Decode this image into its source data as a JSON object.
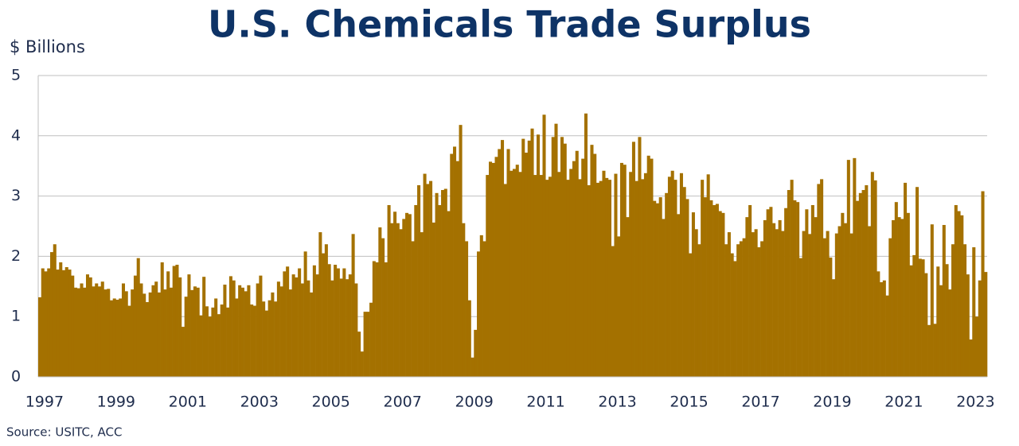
{
  "chart_data": {
    "type": "bar",
    "title": "U.S. Chemicals Trade Surplus",
    "y_label": "$ Billions",
    "source": "Source:  USITC, ACC",
    "color": "#a47100",
    "grid": true,
    "ylim": [
      0,
      5
    ],
    "yticks": [
      0,
      1,
      2,
      3,
      4,
      5
    ],
    "categories": [
      "1997",
      null,
      null,
      null,
      null,
      null,
      null,
      null,
      null,
      null,
      null,
      null,
      null,
      null,
      null,
      null,
      null,
      null,
      null,
      null,
      null,
      null,
      null,
      null,
      "1999",
      null,
      null,
      null,
      null,
      null,
      null,
      null,
      null,
      null,
      null,
      null,
      null,
      null,
      null,
      null,
      null,
      null,
      null,
      null,
      null,
      null,
      null,
      null,
      "2001",
      null,
      null,
      null,
      null,
      null,
      null,
      null,
      null,
      null,
      null,
      null,
      null,
      null,
      null,
      null,
      null,
      null,
      null,
      null,
      null,
      null,
      null,
      null,
      "2003",
      null,
      null,
      null,
      null,
      null,
      null,
      null,
      null,
      null,
      null,
      null,
      null,
      null,
      null,
      null,
      null,
      null,
      null,
      null,
      null,
      null,
      null,
      null,
      "2005",
      null,
      null,
      null,
      null,
      null,
      null,
      null,
      null,
      null,
      null,
      null,
      null,
      null,
      null,
      null,
      null,
      null,
      null,
      null,
      null,
      null,
      null,
      null,
      "2007",
      null,
      null,
      null,
      null,
      null,
      null,
      null,
      null,
      null,
      null,
      null,
      null,
      null,
      null,
      null,
      null,
      null,
      null,
      null,
      null,
      null,
      null,
      null,
      "2009",
      null,
      null,
      null,
      null,
      null,
      null,
      null,
      null,
      null,
      null,
      null,
      null,
      null,
      null,
      null,
      null,
      null,
      null,
      null,
      null,
      null,
      null,
      null,
      "2011",
      null,
      null,
      null,
      null,
      null,
      null,
      null,
      null,
      null,
      null,
      null,
      null,
      null,
      null,
      null,
      null,
      null,
      null,
      null,
      null,
      null,
      null,
      null,
      "2013",
      null,
      null,
      null,
      null,
      null,
      null,
      null,
      null,
      null,
      null,
      null,
      null,
      null,
      null,
      null,
      null,
      null,
      null,
      null,
      null,
      null,
      null,
      null,
      "2015",
      null,
      null,
      null,
      null,
      null,
      null,
      null,
      null,
      null,
      null,
      null,
      null,
      null,
      null,
      null,
      null,
      null,
      null,
      null,
      null,
      null,
      null,
      null,
      "2017",
      null,
      null,
      null,
      null,
      null,
      null,
      null,
      null,
      null,
      null,
      null,
      null,
      null,
      null,
      null,
      null,
      null,
      null,
      null,
      null,
      null,
      null,
      null,
      "2019",
      null,
      null,
      null,
      null,
      null,
      null,
      null,
      null,
      null,
      null,
      null,
      null,
      null,
      null,
      null,
      null,
      null,
      null,
      null,
      null,
      null,
      null,
      null,
      "2021",
      null,
      null,
      null,
      null,
      null,
      null,
      null,
      null,
      null,
      null,
      null,
      null,
      null,
      null,
      null,
      null,
      null,
      null,
      null,
      null,
      null,
      null,
      null,
      "2023",
      null,
      null,
      null,
      null,
      null
    ],
    "values": [
      1.32,
      1.8,
      1.75,
      1.8,
      2.07,
      2.2,
      1.78,
      1.9,
      1.77,
      1.82,
      1.78,
      1.68,
      1.48,
      1.47,
      1.55,
      1.48,
      1.7,
      1.65,
      1.5,
      1.55,
      1.5,
      1.58,
      1.45,
      1.46,
      1.27,
      1.3,
      1.28,
      1.3,
      1.55,
      1.42,
      1.18,
      1.45,
      1.68,
      1.97,
      1.55,
      1.38,
      1.24,
      1.4,
      1.52,
      1.58,
      1.4,
      1.9,
      1.45,
      1.75,
      1.48,
      1.84,
      1.86,
      1.65,
      0.83,
      1.33,
      1.7,
      1.44,
      1.5,
      1.48,
      1.02,
      1.66,
      1.17,
      1.0,
      1.15,
      1.3,
      1.04,
      1.2,
      1.53,
      1.15,
      1.67,
      1.6,
      1.3,
      1.52,
      1.48,
      1.42,
      1.52,
      1.2,
      1.18,
      1.55,
      1.68,
      1.25,
      1.1,
      1.27,
      1.4,
      1.25,
      1.58,
      1.5,
      1.75,
      1.83,
      1.45,
      1.7,
      1.65,
      1.8,
      1.55,
      2.08,
      1.6,
      1.4,
      1.85,
      1.7,
      2.4,
      2.05,
      2.2,
      1.87,
      1.6,
      1.86,
      1.8,
      1.63,
      1.8,
      1.62,
      1.7,
      2.37,
      1.55,
      0.75,
      0.42,
      1.08,
      1.08,
      1.23,
      1.92,
      1.9,
      2.48,
      2.3,
      1.9,
      2.85,
      2.55,
      2.74,
      2.55,
      2.45,
      2.62,
      2.72,
      2.7,
      2.25,
      2.85,
      3.18,
      2.4,
      3.37,
      3.2,
      3.25,
      2.56,
      3.05,
      2.85,
      3.1,
      3.12,
      2.75,
      3.7,
      3.82,
      3.58,
      4.18,
      2.55,
      2.25,
      1.27,
      0.32,
      0.78,
      2.08,
      2.35,
      2.25,
      3.35,
      3.57,
      3.55,
      3.65,
      3.78,
      3.93,
      3.2,
      3.78,
      3.42,
      3.45,
      3.52,
      3.4,
      3.95,
      3.72,
      3.92,
      4.12,
      3.35,
      4.02,
      3.35,
      4.35,
      3.27,
      3.32,
      3.98,
      4.2,
      3.4,
      3.98,
      3.87,
      3.27,
      3.45,
      3.58,
      3.75,
      3.28,
      3.62,
      4.37,
      3.18,
      3.85,
      3.7,
      3.22,
      3.25,
      3.42,
      3.3,
      3.27,
      2.17,
      3.37,
      2.33,
      3.55,
      3.52,
      2.65,
      3.4,
      3.9,
      3.25,
      3.98,
      3.28,
      3.38,
      3.67,
      3.62,
      2.92,
      2.88,
      2.98,
      2.62,
      3.05,
      3.32,
      3.42,
      3.27,
      2.7,
      3.38,
      3.15,
      2.95,
      2.05,
      2.73,
      2.45,
      2.2,
      3.27,
      2.98,
      3.36,
      2.93,
      2.85,
      2.87,
      2.75,
      2.72,
      2.2,
      2.4,
      2.05,
      1.92,
      2.2,
      2.25,
      2.3,
      2.65,
      2.85,
      2.4,
      2.45,
      2.15,
      2.25,
      2.6,
      2.78,
      2.82,
      2.55,
      2.45,
      2.6,
      2.42,
      2.8,
      3.1,
      3.27,
      2.93,
      2.9,
      1.97,
      2.42,
      2.78,
      2.37,
      2.85,
      2.65,
      3.2,
      3.28,
      2.3,
      2.42,
      1.98,
      1.62,
      2.38,
      2.5,
      2.72,
      2.55,
      3.6,
      2.38,
      3.63,
      2.92,
      3.05,
      3.1,
      3.18,
      2.5,
      3.4,
      3.26,
      1.75,
      1.57,
      1.6,
      1.35,
      2.3,
      2.6,
      2.9,
      2.65,
      2.62,
      3.22,
      2.72,
      1.85,
      2.02,
      3.15,
      1.96,
      1.95,
      1.72,
      0.86,
      2.53,
      0.88,
      1.83,
      1.52,
      2.52,
      1.87,
      1.45,
      2.2,
      2.85,
      2.75,
      2.68,
      2.2,
      1.7,
      0.62,
      2.15,
      1.0,
      1.6,
      3.08,
      1.74
    ]
  }
}
